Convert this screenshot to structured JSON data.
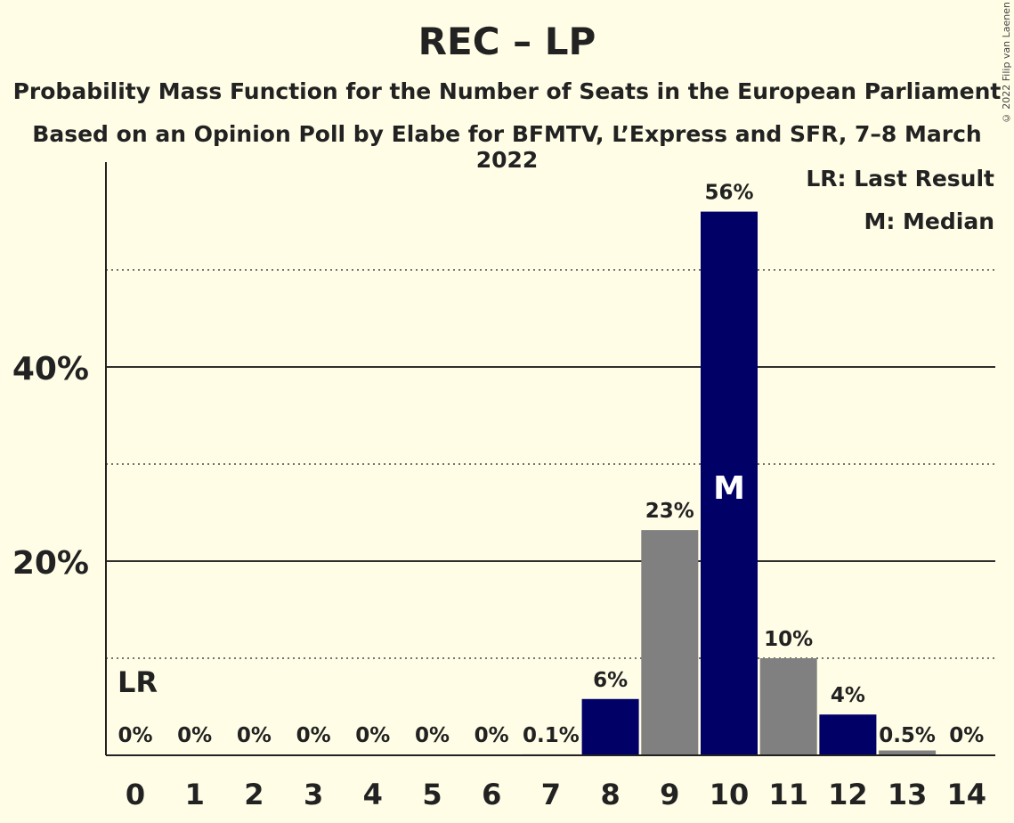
{
  "title": "REC – LP",
  "subtitle1": "Probability Mass Function for the Number of Seats in the European Parliament",
  "subtitle2": "Based on an Opinion Poll by Elabe for BFMTV, L’Express and SFR, 7–8 March 2022",
  "copyright": "© 2022 Filip van Laenen",
  "legend": {
    "lr": "LR: Last Result",
    "m": "M: Median"
  },
  "markers": {
    "last_result_label": "LR",
    "median_label": "M"
  },
  "colors": {
    "background": "#fffde6",
    "primary": "#000066",
    "secondary": "#808080"
  },
  "chart_data": {
    "type": "bar",
    "categories": [
      "0",
      "1",
      "2",
      "3",
      "4",
      "5",
      "6",
      "7",
      "8",
      "9",
      "10",
      "11",
      "12",
      "13",
      "14"
    ],
    "values": [
      0,
      0,
      0,
      0,
      0,
      0,
      0,
      0.1,
      5.8,
      23.2,
      56,
      10,
      4.2,
      0.5,
      0
    ],
    "labels": [
      "0%",
      "0%",
      "0%",
      "0%",
      "0%",
      "0%",
      "0%",
      "0.1%",
      "6%",
      "23%",
      "56%",
      "10%",
      "4%",
      "0.5%",
      "0%"
    ],
    "bar_colors": [
      "#000066",
      "#808080",
      "#000066",
      "#808080",
      "#000066",
      "#808080",
      "#000066",
      "#808080",
      "#000066",
      "#808080",
      "#000066",
      "#808080",
      "#000066",
      "#808080",
      "#000066"
    ],
    "yticks": [
      {
        "value": 20,
        "label": "20%"
      },
      {
        "value": 40,
        "label": "40%"
      }
    ],
    "minor_gridlines": [
      10,
      30,
      50
    ],
    "ylim": [
      0,
      61
    ],
    "last_result_seat": 0,
    "median_seat": 10,
    "legend_position": "top-right"
  }
}
